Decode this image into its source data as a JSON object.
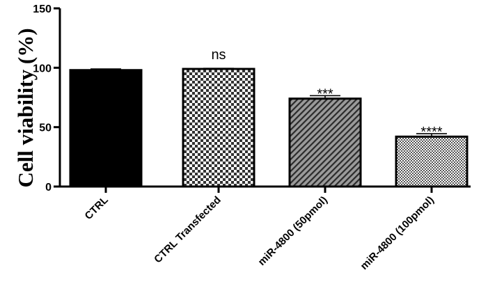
{
  "chart_data": {
    "type": "bar",
    "ylabel": "Cell viability (%)",
    "xlabel": "",
    "ylim": [
      0,
      150
    ],
    "yticks": [
      0,
      50,
      100,
      150
    ],
    "categories": [
      "CTRL",
      "CTRL Transfected",
      "miR-4800 (50pmol)",
      "miR-4800 (100pmol)"
    ],
    "values": [
      98,
      99,
      74,
      42
    ],
    "errors": [
      1,
      0.5,
      2.5,
      2.5
    ],
    "annotations": [
      "",
      "ns",
      "***",
      "****"
    ],
    "fills": [
      "solid-black",
      "checkerboard",
      "diagonal-hatch",
      "fine-checkerboard"
    ],
    "grid": false,
    "legend": "none"
  }
}
